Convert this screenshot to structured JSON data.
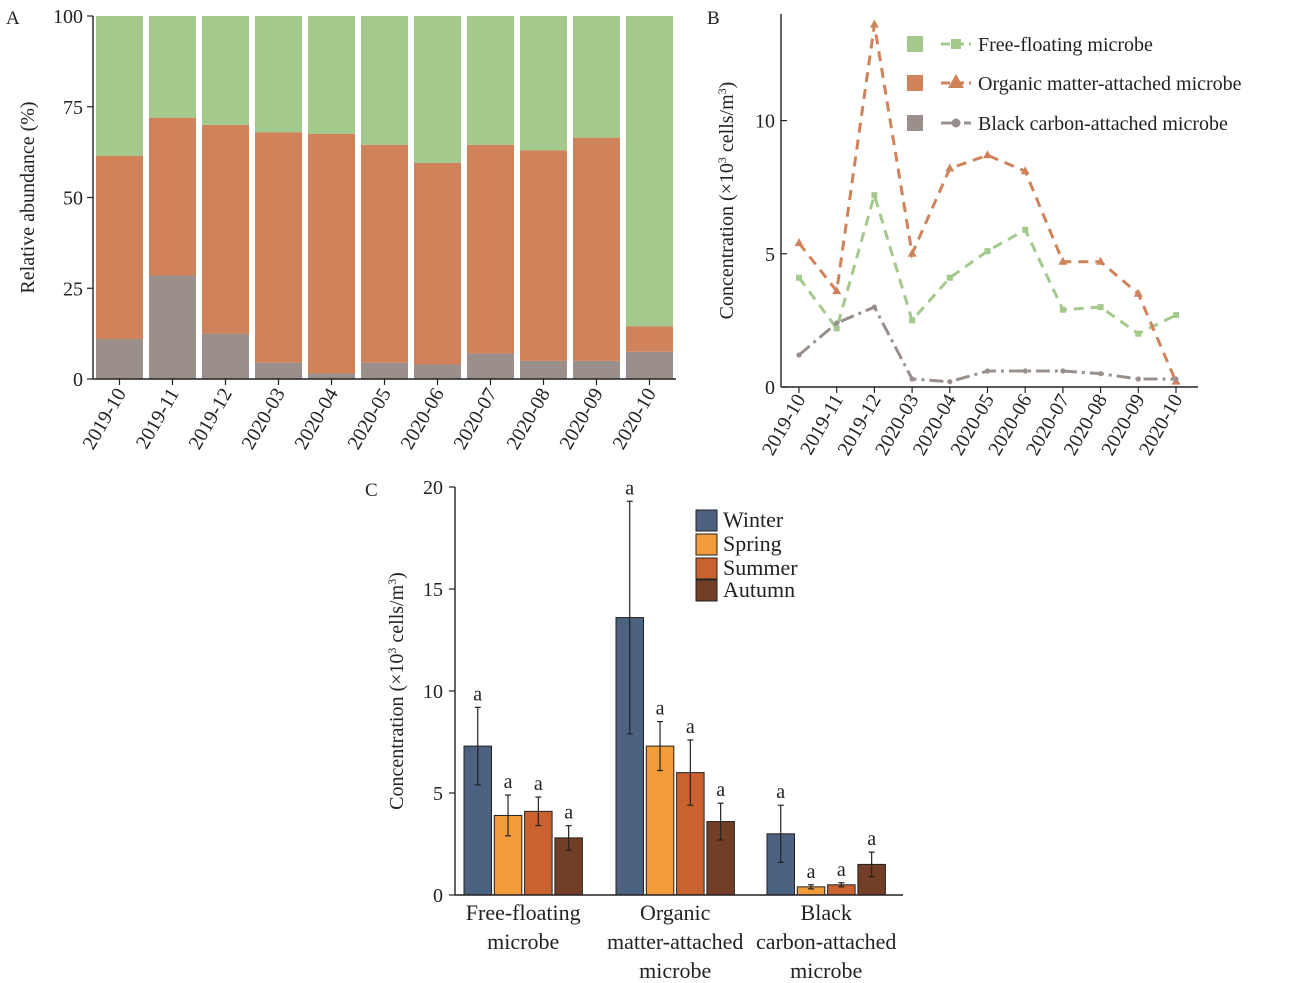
{
  "chart_data": [
    {
      "panel": "A",
      "type": "bar",
      "stacked": true,
      "ylabel": "Relative abundance (%)",
      "ylim": [
        0,
        100
      ],
      "yticks": [
        "0",
        "25",
        "50",
        "75",
        "100"
      ],
      "categories": [
        "2019-10",
        "2019-11",
        "2019-12",
        "2020-03",
        "2020-04",
        "2020-05",
        "2020-06",
        "2020-07",
        "2020-08",
        "2020-09",
        "2020-10"
      ],
      "series": [
        {
          "key": "black",
          "color": "#9b8f8c",
          "values": [
            11,
            28.5,
            12.5,
            4.5,
            1.5,
            4.5,
            4,
            7,
            5,
            5,
            7.5
          ]
        },
        {
          "key": "organic",
          "color": "#d0835b",
          "values": [
            50.5,
            43.5,
            57.5,
            63.5,
            66,
            60,
            55.5,
            57.5,
            58,
            61.5,
            7
          ]
        },
        {
          "key": "free",
          "color": "#a3c98c",
          "values": [
            38.5,
            28,
            30,
            32,
            32.5,
            35.5,
            40.5,
            35.5,
            37,
            33.5,
            85.5
          ]
        }
      ]
    },
    {
      "panel": "B",
      "type": "line",
      "ylabel_pre": "Concentration (×10",
      "ylabel_sup": "3",
      "ylabel_mid": " cells/m",
      "ylabel_sup2": "3",
      "ylabel_post": ")",
      "ylim": [
        0,
        14
      ],
      "yticks": [
        "0",
        "5",
        "10"
      ],
      "x": [
        "2019-10",
        "2019-11",
        "2019-12",
        "2020-03",
        "2020-04",
        "2020-05",
        "2020-06",
        "2020-07",
        "2020-08",
        "2020-09",
        "2020-10"
      ],
      "series": [
        {
          "key": "free",
          "name": "Free-floating microbe",
          "color": "#a3c98c",
          "dash": "10,7",
          "marker": "square",
          "values": [
            4.1,
            2.2,
            7.2,
            2.5,
            4.1,
            5.1,
            5.9,
            2.9,
            3.0,
            2.0,
            2.7
          ]
        },
        {
          "key": "organic",
          "name": "Organic matter-attached microbe",
          "color": "#d0835b",
          "dash": "10,7",
          "marker": "triangle",
          "values": [
            5.4,
            3.6,
            13.6,
            5.0,
            8.2,
            8.7,
            8.1,
            4.7,
            4.7,
            3.5,
            0.2
          ]
        },
        {
          "key": "black",
          "name": "Black carbon-attached microbe",
          "color": "#9b8f8c",
          "dash": "14,5,3,5",
          "marker": "circle",
          "values": [
            1.2,
            2.4,
            3.0,
            0.3,
            0.2,
            0.6,
            0.6,
            0.6,
            0.5,
            0.3,
            0.3
          ]
        }
      ]
    },
    {
      "panel": "C",
      "type": "bar",
      "ylabel_pre": "Concentration (×10",
      "ylabel_sup": "3",
      "ylabel_mid": " cells/m",
      "ylabel_sup2": "3",
      "ylabel_post": ")",
      "ylim": [
        0,
        20
      ],
      "yticks": [
        "0",
        "5",
        "10",
        "15",
        "20"
      ],
      "categories": [
        [
          "Free-floating",
          "microbe"
        ],
        [
          "Organic",
          "matter-attached",
          "microbe"
        ],
        [
          "Black",
          "carbon-attached",
          "microbe"
        ]
      ],
      "series": [
        {
          "name": "Winter",
          "color": "#4d6280",
          "values": [
            7.3,
            13.6,
            3.0
          ],
          "err": [
            1.9,
            5.7,
            1.4
          ],
          "letters": [
            "a",
            "a",
            "a"
          ]
        },
        {
          "name": "Spring",
          "color": "#f19b3b",
          "values": [
            3.9,
            7.3,
            0.4
          ],
          "err": [
            1.0,
            1.2,
            0.1
          ],
          "letters": [
            "a",
            "a",
            "a"
          ]
        },
        {
          "name": "Summer",
          "color": "#c9622f",
          "values": [
            4.1,
            6.0,
            0.5
          ],
          "err": [
            0.7,
            1.6,
            0.1
          ],
          "letters": [
            "a",
            "a",
            "a"
          ]
        },
        {
          "name": "Autumn",
          "color": "#733e26",
          "values": [
            2.8,
            3.6,
            1.5
          ],
          "err": [
            0.6,
            0.9,
            0.6
          ],
          "letters": [
            "a",
            "a",
            "a"
          ]
        }
      ]
    }
  ],
  "labels": {
    "panel_a": "A",
    "panel_b": "B",
    "panel_c": "C"
  }
}
